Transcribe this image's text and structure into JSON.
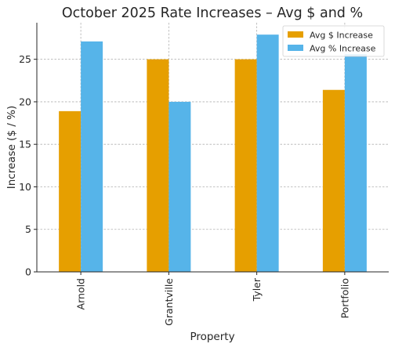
{
  "chart_data": {
    "type": "bar",
    "title": "October 2025 Rate Increases – Avg $ and %",
    "xlabel": "Property",
    "ylabel": "Increase ($ / %)",
    "categories": [
      "Arnold",
      "Grantville",
      "Tyler",
      "Portfolio"
    ],
    "series": [
      {
        "name": "Avg $ Increase",
        "values": [
          18.9,
          25.0,
          25.0,
          21.4
        ],
        "color": "#E69F00"
      },
      {
        "name": "Avg % Increase",
        "values": [
          27.1,
          20.0,
          27.9,
          25.6
        ],
        "color": "#56B4E9"
      }
    ],
    "ylim": [
      0,
      29.3
    ],
    "yticks": [
      0,
      5,
      10,
      15,
      20,
      25
    ],
    "grid": true,
    "legend_position": "top-right"
  }
}
